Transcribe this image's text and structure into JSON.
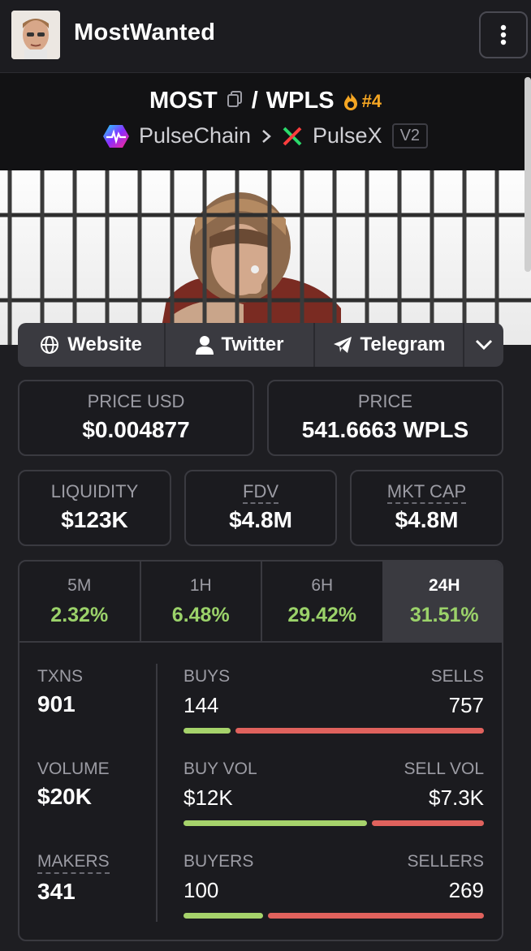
{
  "topbar": {
    "title": "MostWanted"
  },
  "pair": {
    "base": "MOST",
    "separator": "/",
    "quote": "WPLS",
    "rank": "#4",
    "chain": "PulseChain",
    "dex": "PulseX",
    "version": "V2"
  },
  "links": {
    "website": "Website",
    "twitter": "Twitter",
    "telegram": "Telegram"
  },
  "price": {
    "usd_label": "PRICE USD",
    "usd_value": "$0.004877",
    "native_label": "PRICE",
    "native_value": "541.6663 WPLS"
  },
  "metrics": {
    "liquidity_label": "LIQUIDITY",
    "liquidity_value": "$123K",
    "fdv_label": "FDV",
    "fdv_value": "$4.8M",
    "mktcap_label": "MKT CAP",
    "mktcap_value": "$4.8M"
  },
  "timeframes": [
    {
      "label": "5M",
      "change": "2.32%"
    },
    {
      "label": "1H",
      "change": "6.48%"
    },
    {
      "label": "6H",
      "change": "29.42%"
    },
    {
      "label": "24H",
      "change": "31.51%"
    }
  ],
  "stats": {
    "txns_label": "TXNS",
    "txns_value": "901",
    "volume_label": "VOLUME",
    "volume_value": "$20K",
    "makers_label": "MAKERS",
    "makers_value": "341",
    "buys_label": "BUYS",
    "buys_value": "144",
    "sells_label": "SELLS",
    "sells_value": "757",
    "buys_fraction": 0.16,
    "buyvol_label": "BUY VOL",
    "buyvol_value": "$12K",
    "sellvol_label": "SELL VOL",
    "sellvol_value": "$7.3K",
    "buyvol_fraction": 0.62,
    "buyers_label": "BUYERS",
    "buyers_value": "100",
    "sellers_label": "SELLERS",
    "sellers_value": "269",
    "buyers_fraction": 0.27
  },
  "colors": {
    "positive": "#9bd26a",
    "buy_bar": "#a6d36b",
    "sell_bar": "#e0625d",
    "rank": "#f5a623"
  }
}
